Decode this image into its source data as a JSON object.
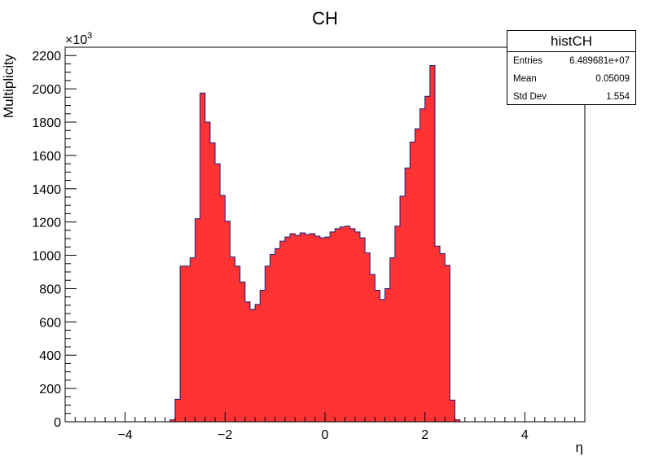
{
  "chart_data": {
    "type": "bar",
    "title": "CH",
    "xlabel": "η",
    "ylabel": "Multiplicity",
    "y_multiplier_label": "×10",
    "y_multiplier_exponent": "3",
    "xlim": [
      -5.2,
      5.2
    ],
    "ylim": [
      0,
      2250
    ],
    "x_ticks": [
      -4,
      -2,
      0,
      2,
      4
    ],
    "x_tick_labels": [
      "−4",
      "−2",
      "0",
      "2",
      "4"
    ],
    "y_ticks": [
      0,
      200,
      400,
      600,
      800,
      1000,
      1200,
      1400,
      1600,
      1800,
      2000,
      2200
    ],
    "y_tick_labels": [
      "0",
      "200",
      "400",
      "600",
      "800",
      "1000",
      "1200",
      "1400",
      "1600",
      "1800",
      "2000",
      "2200"
    ],
    "bin_width": 0.1,
    "bins_low_edge": [
      -3.1,
      -3.0,
      -2.9,
      -2.8,
      -2.7,
      -2.6,
      -2.5,
      -2.4,
      -2.3,
      -2.2,
      -2.1,
      -2.0,
      -1.9,
      -1.8,
      -1.7,
      -1.6,
      -1.5,
      -1.4,
      -1.3,
      -1.2,
      -1.1,
      -1.0,
      -0.9,
      -0.8,
      -0.7,
      -0.6,
      -0.5,
      -0.4,
      -0.3,
      -0.2,
      -0.1,
      0.0,
      0.1,
      0.2,
      0.3,
      0.4,
      0.5,
      0.6,
      0.7,
      0.8,
      0.9,
      1.0,
      1.1,
      1.2,
      1.3,
      1.4,
      1.5,
      1.6,
      1.7,
      1.8,
      1.9,
      2.0,
      2.1,
      2.2,
      2.3,
      2.4,
      2.5,
      2.6,
      2.7,
      2.8,
      2.9,
      3.0
    ],
    "values": [
      12,
      135,
      935,
      935,
      985,
      1220,
      1975,
      1800,
      1675,
      1550,
      1360,
      1205,
      990,
      935,
      840,
      720,
      675,
      705,
      790,
      935,
      1005,
      1040,
      1085,
      1110,
      1130,
      1120,
      1135,
      1125,
      1130,
      1115,
      1105,
      1110,
      1140,
      1160,
      1170,
      1175,
      1160,
      1140,
      1105,
      1015,
      885,
      790,
      735,
      800,
      985,
      1175,
      1355,
      1525,
      1680,
      1760,
      1880,
      1955,
      2140,
      1055,
      1010,
      940,
      130,
      12,
      0,
      0,
      0,
      0
    ],
    "fill_color": "#ff3333",
    "line_color": "#1a1a7a",
    "grid": false
  },
  "stats": {
    "name": "histCH",
    "entries_label": "Entries",
    "entries_value": "6.489681e+07",
    "mean_label": "Mean",
    "mean_value": "0.05009",
    "std_label": "Std Dev",
    "std_value": "1.554"
  }
}
